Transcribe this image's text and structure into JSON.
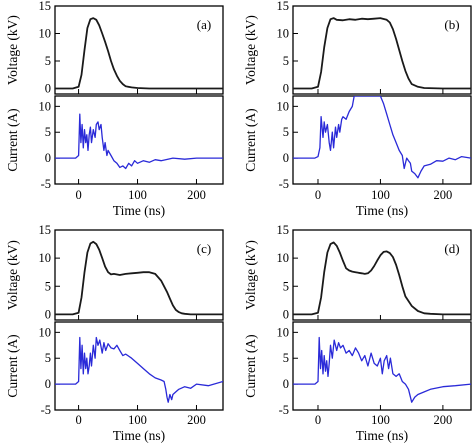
{
  "colors": {
    "voltage": "#1a1a1a",
    "current": "#2a2ad8"
  },
  "chart_data": [
    {
      "type": "line",
      "panel": "(a)",
      "xlabel": "Time (ns)",
      "xlim": [
        -40,
        245
      ],
      "xticks": [
        0,
        100,
        200
      ],
      "voltage": {
        "ylabel": "Voltage (kV)",
        "ylim": [
          -1,
          15
        ],
        "yticks": [
          0,
          5,
          10,
          15
        ],
        "x": [
          -40,
          -10,
          0,
          5,
          10,
          15,
          20,
          25,
          30,
          35,
          40,
          45,
          50,
          55,
          60,
          65,
          70,
          75,
          80,
          90,
          100,
          120,
          150,
          200,
          245
        ],
        "y": [
          0,
          0,
          0.3,
          2.5,
          7,
          11,
          12.6,
          12.8,
          12.5,
          11.5,
          10,
          8.5,
          6.8,
          5,
          3.5,
          2.3,
          1.4,
          0.8,
          0.4,
          0.2,
          0.1,
          0,
          0,
          0,
          0
        ]
      },
      "current": {
        "ylabel": "Current (A)",
        "ylim": [
          -5,
          12
        ],
        "yticks": [
          -5,
          0,
          5,
          10
        ],
        "x": [
          -40,
          -5,
          0,
          2,
          4,
          6,
          8,
          10,
          12,
          14,
          16,
          18,
          20,
          22,
          25,
          28,
          30,
          33,
          35,
          38,
          40,
          43,
          45,
          48,
          50,
          55,
          60,
          65,
          70,
          75,
          80,
          85,
          90,
          95,
          100,
          110,
          120,
          130,
          140,
          160,
          180,
          200,
          245
        ],
        "y": [
          0,
          0,
          0.5,
          8.5,
          3,
          6.5,
          2,
          5.5,
          3,
          4.5,
          1.5,
          4.5,
          6,
          3,
          5.5,
          4,
          6.5,
          7,
          5.5,
          6.5,
          4,
          1.5,
          3,
          0.5,
          1.5,
          0.5,
          -0.5,
          -1,
          -1.8,
          -1.5,
          -2,
          -1,
          -1.5,
          -0.5,
          -1,
          -0.5,
          -0.8,
          -0.3,
          -0.5,
          0,
          -0.2,
          0,
          0
        ]
      }
    },
    {
      "type": "line",
      "panel": "(b)",
      "xlabel": "Time (ns)",
      "xlim": [
        -40,
        245
      ],
      "xticks": [
        0,
        100,
        200
      ],
      "voltage": {
        "ylabel": "Voltage (kV)",
        "ylim": [
          -1,
          15
        ],
        "yticks": [
          0,
          5,
          10,
          15
        ],
        "x": [
          -40,
          -10,
          0,
          5,
          10,
          15,
          20,
          25,
          30,
          40,
          50,
          60,
          70,
          80,
          90,
          100,
          110,
          115,
          120,
          125,
          130,
          135,
          140,
          145,
          150,
          160,
          170,
          200,
          245
        ],
        "y": [
          0,
          0,
          0.3,
          3,
          7.5,
          11,
          12.6,
          12.8,
          12.5,
          12.4,
          12.6,
          12.5,
          12.7,
          12.6,
          12.7,
          12.8,
          12.5,
          12,
          10.8,
          9,
          7,
          5,
          3.2,
          1.8,
          0.8,
          0.3,
          0.1,
          0,
          0
        ]
      },
      "current": {
        "ylabel": "Current (A)",
        "ylim": [
          -5,
          12
        ],
        "yticks": [
          -5,
          0,
          5,
          10
        ],
        "x": [
          -40,
          -5,
          0,
          3,
          5,
          8,
          10,
          12,
          15,
          18,
          20,
          23,
          25,
          28,
          30,
          33,
          35,
          38,
          40,
          45,
          50,
          55,
          58,
          100,
          105,
          110,
          115,
          120,
          125,
          130,
          135,
          138,
          140,
          142,
          145,
          148,
          150,
          155,
          160,
          165,
          170,
          180,
          190,
          200,
          210,
          220,
          230,
          245
        ],
        "y": [
          0,
          0,
          0.3,
          2,
          8,
          4,
          7,
          5,
          6.5,
          3,
          1.5,
          5,
          2,
          6,
          4,
          6.5,
          5,
          7.5,
          8,
          7.5,
          9,
          10,
          12,
          12,
          10.5,
          8.5,
          6.5,
          4.5,
          3,
          1.5,
          0.5,
          -2,
          -1,
          0,
          -0.5,
          -1,
          -2.5,
          -3,
          -3.8,
          -2.5,
          -1.5,
          -1.2,
          -0.5,
          -0.6,
          0,
          -0.3,
          0.3,
          0
        ]
      }
    },
    {
      "type": "line",
      "panel": "(c)",
      "xlabel": "Time (ns)",
      "xlim": [
        -40,
        245
      ],
      "xticks": [
        0,
        100,
        200
      ],
      "voltage": {
        "ylabel": "Voltage (kV)",
        "ylim": [
          -1,
          15
        ],
        "yticks": [
          0,
          5,
          10,
          15
        ],
        "x": [
          -40,
          -10,
          0,
          5,
          10,
          15,
          20,
          25,
          30,
          35,
          40,
          45,
          50,
          55,
          60,
          70,
          80,
          90,
          100,
          110,
          120,
          130,
          140,
          150,
          155,
          160,
          165,
          170,
          175,
          180,
          190,
          200,
          245
        ],
        "y": [
          0,
          0,
          0.3,
          3,
          7.5,
          11,
          12.6,
          12.9,
          12.5,
          11.5,
          10,
          8.5,
          7.5,
          7.1,
          7.2,
          7,
          7.2,
          7.3,
          7.4,
          7.5,
          7.5,
          7.2,
          6,
          4,
          2.8,
          1.6,
          0.8,
          0.4,
          0.2,
          0.1,
          0,
          0,
          0
        ]
      },
      "current": {
        "ylabel": "Current (A)",
        "ylim": [
          -5,
          12
        ],
        "yticks": [
          -5,
          0,
          5,
          10
        ],
        "x": [
          -40,
          -5,
          0,
          2,
          4,
          6,
          8,
          10,
          12,
          14,
          16,
          18,
          20,
          22,
          25,
          28,
          30,
          33,
          36,
          40,
          43,
          46,
          50,
          55,
          60,
          65,
          70,
          75,
          80,
          90,
          100,
          110,
          120,
          130,
          140,
          145,
          148,
          150,
          152,
          155,
          158,
          160,
          165,
          170,
          180,
          190,
          200,
          220,
          245
        ],
        "y": [
          0,
          0,
          0.5,
          9,
          3,
          7.5,
          2,
          6,
          3,
          5,
          2,
          3.5,
          6,
          3.5,
          7.5,
          5,
          9,
          7.5,
          8.5,
          6,
          8,
          6.5,
          7.8,
          7,
          6.8,
          7.5,
          6.5,
          5.5,
          5.8,
          5,
          4,
          3,
          2,
          1.2,
          0.8,
          0.5,
          -1,
          -2.5,
          -3.5,
          -2,
          -3,
          -2,
          -1.5,
          -1,
          -0.5,
          -0.8,
          0,
          -0.3,
          0.5
        ]
      }
    },
    {
      "type": "line",
      "panel": "(d)",
      "xlabel": "Time (ns)",
      "xlim": [
        -40,
        245
      ],
      "xticks": [
        0,
        100,
        200
      ],
      "voltage": {
        "ylabel": "Voltage (kV)",
        "ylim": [
          -1,
          15
        ],
        "yticks": [
          0,
          5,
          10,
          15
        ],
        "x": [
          -40,
          -10,
          0,
          5,
          10,
          15,
          20,
          25,
          30,
          35,
          40,
          45,
          50,
          55,
          60,
          65,
          70,
          75,
          80,
          85,
          90,
          95,
          100,
          105,
          110,
          115,
          120,
          125,
          130,
          135,
          140,
          150,
          160,
          170,
          180,
          200,
          245
        ],
        "y": [
          0,
          0,
          0.3,
          3,
          7.5,
          11,
          12.5,
          12.8,
          12.2,
          11,
          9.5,
          8.2,
          7.8,
          7.6,
          7.5,
          7.4,
          7.3,
          7.2,
          7.3,
          7.8,
          8.6,
          9.6,
          10.5,
          11.1,
          11.2,
          10.9,
          10.2,
          8.8,
          7,
          5,
          3.2,
          1.5,
          0.6,
          0.2,
          0.1,
          0,
          0
        ]
      },
      "current": {
        "ylabel": "Current (A)",
        "ylim": [
          -5,
          12
        ],
        "yticks": [
          -5,
          0,
          5,
          10
        ],
        "x": [
          -40,
          -5,
          0,
          2,
          4,
          6,
          8,
          10,
          12,
          14,
          16,
          18,
          20,
          23,
          26,
          30,
          33,
          36,
          40,
          45,
          50,
          55,
          60,
          65,
          70,
          75,
          80,
          85,
          90,
          95,
          100,
          103,
          106,
          110,
          113,
          116,
          120,
          125,
          130,
          135,
          140,
          145,
          150,
          155,
          160,
          170,
          180,
          200,
          220,
          245
        ],
        "y": [
          0,
          0,
          0.5,
          9,
          3,
          6.5,
          2,
          5.5,
          2.5,
          4.5,
          1.5,
          4,
          7.5,
          5,
          8.5,
          6.5,
          8,
          7,
          7.5,
          6,
          6.5,
          5.5,
          7,
          6,
          4.5,
          5.5,
          3.5,
          6,
          4,
          3.5,
          5,
          2,
          4.5,
          5.5,
          3,
          5,
          2,
          1.5,
          2,
          0.5,
          0,
          -1,
          -3.5,
          -2.5,
          -2,
          -1.5,
          -1,
          -0.5,
          -0.3,
          0
        ]
      }
    }
  ]
}
